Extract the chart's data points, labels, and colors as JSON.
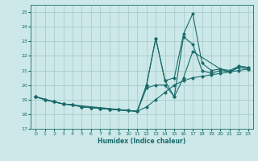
{
  "xlabel": "Humidex (Indice chaleur)",
  "xlim": [
    -0.5,
    23.5
  ],
  "ylim": [
    17,
    25.5
  ],
  "xticks": [
    0,
    1,
    2,
    3,
    4,
    5,
    6,
    7,
    8,
    9,
    10,
    11,
    12,
    13,
    14,
    15,
    16,
    17,
    18,
    19,
    20,
    21,
    22,
    23
  ],
  "yticks": [
    17,
    18,
    19,
    20,
    21,
    22,
    23,
    24,
    25
  ],
  "bg_color": "#cce8e8",
  "grid_color": "#aacccc",
  "line_color": "#1a6b6b",
  "lines": [
    {
      "x": [
        0,
        1,
        2,
        3,
        4,
        5,
        6,
        7,
        8,
        9,
        10,
        11,
        12,
        13,
        14,
        15,
        16,
        17,
        18,
        19,
        20,
        21,
        22,
        23
      ],
      "y": [
        19.2,
        19.0,
        18.85,
        18.7,
        18.65,
        18.5,
        18.45,
        18.4,
        18.35,
        18.3,
        18.25,
        18.2,
        18.5,
        19.0,
        19.5,
        20.0,
        20.3,
        20.5,
        20.6,
        20.7,
        20.8,
        20.9,
        21.0,
        21.1
      ]
    },
    {
      "x": [
        0,
        1,
        2,
        3,
        4,
        5,
        6,
        7,
        8,
        9,
        10,
        11,
        12,
        13,
        14,
        15,
        16,
        17,
        18,
        19,
        20,
        21,
        22,
        23
      ],
      "y": [
        19.2,
        19.0,
        18.85,
        18.7,
        18.65,
        18.5,
        18.45,
        18.4,
        18.35,
        18.3,
        18.25,
        18.2,
        20.0,
        23.2,
        20.3,
        20.5,
        23.5,
        24.9,
        21.5,
        21.0,
        21.1,
        20.9,
        21.3,
        21.2
      ]
    },
    {
      "x": [
        0,
        1,
        2,
        3,
        4,
        5,
        6,
        7,
        8,
        9,
        10,
        11,
        12,
        13,
        14,
        15,
        16,
        17,
        18,
        19,
        20,
        21,
        22,
        23
      ],
      "y": [
        19.2,
        19.0,
        18.85,
        18.7,
        18.65,
        18.5,
        18.45,
        18.4,
        18.35,
        18.3,
        18.25,
        18.2,
        19.8,
        20.0,
        20.0,
        19.2,
        23.3,
        22.8,
        21.0,
        20.8,
        21.0,
        20.9,
        21.2,
        21.1
      ]
    },
    {
      "x": [
        0,
        3,
        11,
        12,
        13,
        14,
        15,
        16,
        17,
        20,
        21,
        22,
        23
      ],
      "y": [
        19.2,
        18.7,
        18.2,
        20.0,
        23.2,
        20.3,
        19.2,
        20.5,
        22.3,
        21.1,
        21.0,
        21.3,
        21.2
      ]
    }
  ]
}
